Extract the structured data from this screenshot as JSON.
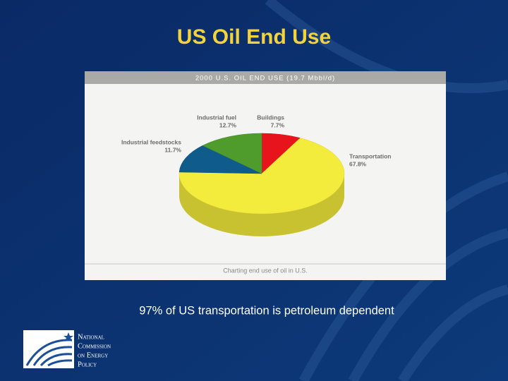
{
  "title": "US Oil End Use",
  "chart_data": {
    "type": "pie",
    "title": "2000 U.S. OIL END USE (19.7 Mbbl/d)",
    "categories": [
      "Buildings",
      "Transportation",
      "Industrial feedstocks",
      "Industrial fuel"
    ],
    "values": [
      7.7,
      67.8,
      11.7,
      12.7
    ],
    "value_labels": [
      "7.7%",
      "67.8%",
      "11.7%",
      "12.7%"
    ],
    "colors": [
      "#e8141c",
      "#f4ec3c",
      "#0f5b8c",
      "#4f9b2c"
    ],
    "caption": "Charting end use of oil in U.S."
  },
  "footnote": "97% of US transportation is petroleum dependent",
  "logo": {
    "lines": [
      "National",
      "Commission",
      "on Energy",
      "Policy"
    ]
  }
}
